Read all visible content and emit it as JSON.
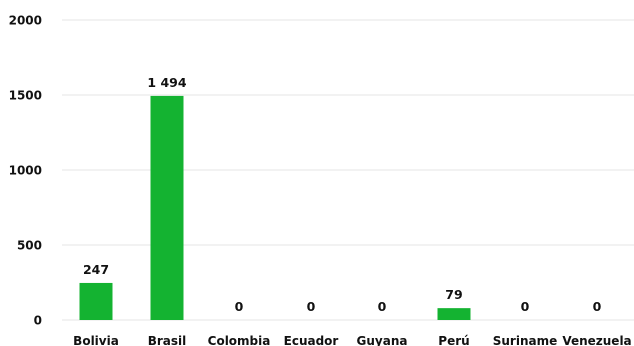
{
  "chart_data": {
    "type": "bar",
    "title": "",
    "xlabel": "",
    "ylabel": "",
    "categories": [
      "Bolivia",
      "Brasil",
      "Colombia",
      "Ecuador",
      "Guyana",
      "Perú",
      "Suriname",
      "Venezuela"
    ],
    "values": [
      247,
      1494,
      0,
      0,
      0,
      79,
      0,
      0
    ],
    "data_labels": [
      "247",
      "1 494",
      "0",
      "0",
      "0",
      "79",
      "0",
      "0"
    ],
    "ylim": [
      0,
      2000
    ],
    "yticks": [
      "0",
      "500",
      "1000",
      "1500",
      "2000"
    ],
    "grid": true,
    "legend": "none",
    "colors": {
      "bar": "#14b331",
      "grid": "#e6e6e6",
      "text": "#111111"
    }
  }
}
